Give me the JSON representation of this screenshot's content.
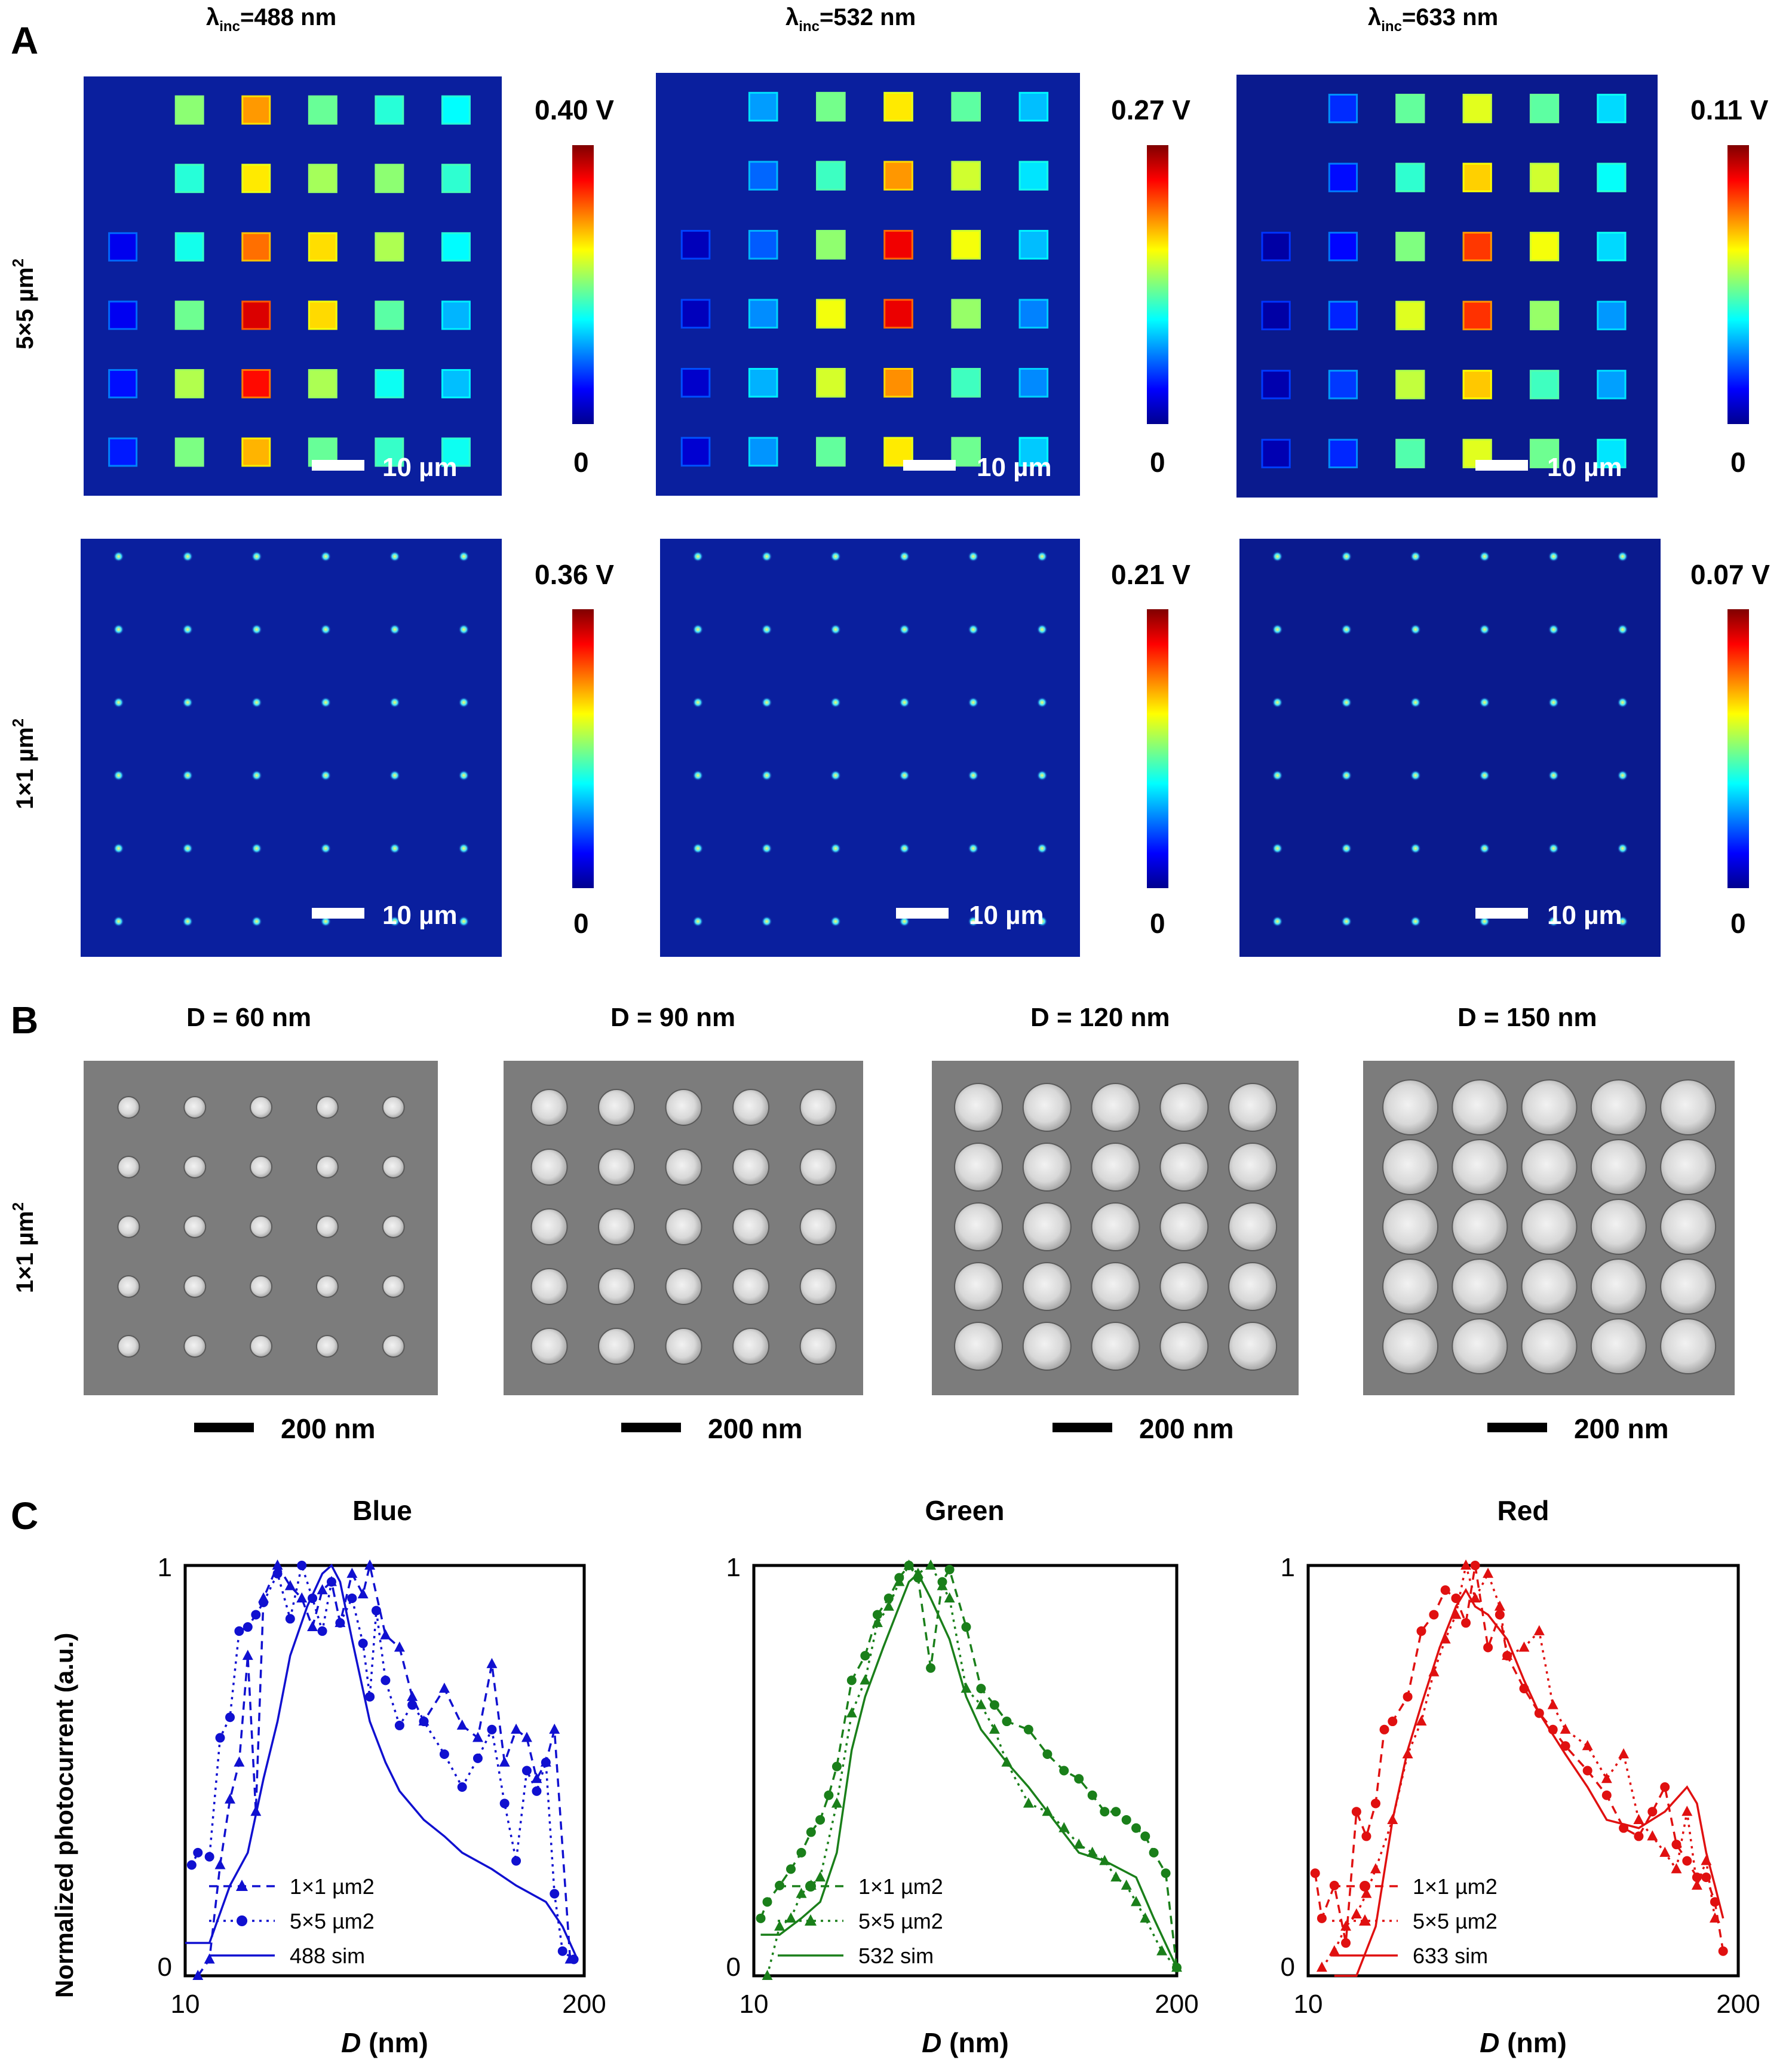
{
  "panels": {
    "A": {
      "label": "A",
      "columns": [
        {
          "prefix": "λ",
          "sub": "inc",
          "suffix": "=488 nm"
        },
        {
          "prefix": "λ",
          "sub": "inc",
          "suffix": "=532 nm"
        },
        {
          "prefix": "λ",
          "sub": "inc",
          "suffix": "=633 nm"
        }
      ],
      "rows": [
        {
          "label": "5×5 µm",
          "sup": "2"
        },
        {
          "label": "1×1 µm",
          "sup": "2"
        }
      ],
      "colorbar_max": [
        "0.40 V",
        "0.27 V",
        "0.11 V",
        "0.36 V",
        "0.21 V",
        "0.07 V"
      ],
      "colorbar_min": "0",
      "scale_bar": "10 µm"
    },
    "B": {
      "label": "B",
      "row_label": {
        "label": "1×1 µm",
        "sup": "2"
      },
      "titles": [
        "D = 60 nm",
        "D = 90 nm",
        "D = 120 nm",
        "D = 150 nm"
      ],
      "scale_bar": "200 nm"
    },
    "C": {
      "label": "C",
      "ylabel": "Normalized photocurrent (a.u.)",
      "xlabel_italic": "D",
      "xlabel_unit": " (nm)"
    }
  },
  "chart_data": [
    {
      "type": "line",
      "title": "Blue",
      "color": "#1010d0",
      "xscale": "log",
      "xlim": [
        10,
        200
      ],
      "ylim": [
        0,
        1
      ],
      "xticks": [
        "10",
        "200"
      ],
      "yticks": [
        "0",
        "1"
      ],
      "legend_position": "bottom-left",
      "series": [
        {
          "name": "1×1 µm2",
          "marker": "triangle",
          "line": "dashed",
          "x": [
            11,
            12,
            13,
            14,
            15,
            16,
            17,
            18,
            20,
            22,
            24,
            26,
            28,
            30,
            32,
            35,
            38,
            40,
            45,
            50,
            55,
            60,
            70,
            80,
            90,
            100,
            110,
            120,
            130,
            140,
            150,
            160,
            180
          ],
          "y": [
            0.0,
            0.04,
            0.27,
            0.43,
            0.52,
            0.78,
            0.4,
            0.92,
            1.0,
            0.95,
            0.92,
            0.85,
            0.94,
            0.96,
            0.86,
            0.98,
            0.93,
            1.0,
            0.83,
            0.8,
            0.68,
            0.62,
            0.7,
            0.61,
            0.58,
            0.76,
            0.52,
            0.6,
            0.58,
            0.48,
            0.52,
            0.6,
            0.04
          ]
        },
        {
          "name": "5×5 µm2",
          "marker": "circle",
          "line": "dash-dot",
          "x": [
            10.5,
            11,
            12,
            13,
            14,
            15,
            16,
            17,
            18,
            20,
            22,
            24,
            26,
            28,
            30,
            32,
            35,
            38,
            40,
            42,
            45,
            50,
            55,
            60,
            70,
            80,
            90,
            100,
            110,
            120,
            130,
            140,
            150,
            160,
            170,
            185
          ],
          "y": [
            0.27,
            0.3,
            0.29,
            0.58,
            0.63,
            0.84,
            0.85,
            0.88,
            0.91,
            0.98,
            0.87,
            1.0,
            0.92,
            0.84,
            0.96,
            0.86,
            0.92,
            0.81,
            0.68,
            0.89,
            0.72,
            0.61,
            0.66,
            0.62,
            0.54,
            0.46,
            0.53,
            0.6,
            0.42,
            0.28,
            0.5,
            0.45,
            0.52,
            0.2,
            0.06,
            0.04
          ]
        },
        {
          "name": "488 sim",
          "marker": "none",
          "line": "solid",
          "x": [
            10,
            12,
            14,
            16,
            18,
            20,
            22,
            25,
            28,
            30,
            32,
            35,
            40,
            45,
            50,
            60,
            70,
            80,
            100,
            120,
            150,
            170,
            190
          ],
          "y": [
            0.08,
            0.08,
            0.22,
            0.3,
            0.48,
            0.62,
            0.78,
            0.9,
            0.98,
            1.0,
            0.96,
            0.82,
            0.62,
            0.52,
            0.45,
            0.38,
            0.34,
            0.3,
            0.26,
            0.22,
            0.18,
            0.12,
            0.04
          ]
        }
      ]
    },
    {
      "type": "line",
      "title": "Green",
      "color": "#1a7f1a",
      "xscale": "log",
      "xlim": [
        10,
        200
      ],
      "ylim": [
        0,
        1
      ],
      "xticks": [
        "10",
        "200"
      ],
      "yticks": [
        "0",
        "1"
      ],
      "legend_position": "bottom-left",
      "series": [
        {
          "name": "1×1 µm2",
          "marker": "circle",
          "line": "dashed",
          "x": [
            10.5,
            11,
            12,
            13,
            14,
            15,
            16,
            17,
            18,
            20,
            22,
            24,
            26,
            28,
            30,
            32,
            35,
            38,
            40,
            45,
            50,
            55,
            60,
            70,
            80,
            90,
            100,
            110,
            120,
            130,
            140,
            150,
            160,
            170,
            185,
            200
          ],
          "y": [
            0.14,
            0.18,
            0.22,
            0.26,
            0.3,
            0.35,
            0.38,
            0.44,
            0.51,
            0.72,
            0.78,
            0.88,
            0.92,
            0.97,
            1.0,
            0.97,
            0.75,
            0.96,
            0.99,
            0.85,
            0.7,
            0.66,
            0.62,
            0.6,
            0.54,
            0.5,
            0.48,
            0.44,
            0.4,
            0.4,
            0.38,
            0.36,
            0.34,
            0.3,
            0.25,
            0.02
          ]
        },
        {
          "name": "5×5 µm2",
          "marker": "triangle",
          "line": "dash-dot",
          "x": [
            11,
            12,
            13,
            14,
            15,
            16,
            18,
            20,
            22,
            24,
            26,
            28,
            30,
            32,
            35,
            38,
            40,
            45,
            50,
            55,
            60,
            70,
            80,
            90,
            100,
            110,
            120,
            130,
            140,
            150,
            160,
            180,
            200
          ],
          "y": [
            0.0,
            0.12,
            0.14,
            0.2,
            0.22,
            0.24,
            0.42,
            0.64,
            0.72,
            0.86,
            0.9,
            0.96,
            1.0,
            0.98,
            1.0,
            0.95,
            0.92,
            0.7,
            0.66,
            0.6,
            0.52,
            0.42,
            0.4,
            0.36,
            0.32,
            0.3,
            0.28,
            0.24,
            0.22,
            0.18,
            0.14,
            0.06,
            0.02
          ]
        },
        {
          "name": "532 sim",
          "marker": "none",
          "line": "solid",
          "x": [
            10.5,
            12,
            14,
            16,
            18,
            20,
            22,
            25,
            28,
            30,
            32,
            35,
            40,
            45,
            50,
            60,
            70,
            80,
            100,
            120,
            150,
            170,
            200
          ],
          "y": [
            0.1,
            0.1,
            0.14,
            0.18,
            0.3,
            0.55,
            0.68,
            0.8,
            0.9,
            0.96,
            0.98,
            0.92,
            0.82,
            0.68,
            0.6,
            0.52,
            0.46,
            0.4,
            0.3,
            0.28,
            0.24,
            0.14,
            0.02
          ]
        }
      ]
    },
    {
      "type": "line",
      "title": "Red",
      "color": "#e01010",
      "xscale": "log",
      "xlim": [
        10,
        200
      ],
      "ylim": [
        0,
        1
      ],
      "xticks": [
        "10",
        "200"
      ],
      "yticks": [
        "0",
        "1"
      ],
      "legend_position": "bottom-left",
      "series": [
        {
          "name": "1×1 µm2",
          "marker": "circle",
          "line": "dashed",
          "x": [
            10.5,
            11,
            12,
            13,
            14,
            15,
            16,
            17,
            18,
            20,
            22,
            24,
            26,
            28,
            30,
            32,
            35,
            38,
            40,
            45,
            50,
            55,
            60,
            70,
            80,
            90,
            100,
            110,
            120,
            130,
            140,
            150,
            160,
            170,
            180
          ],
          "y": [
            0.25,
            0.14,
            0.22,
            0.08,
            0.4,
            0.34,
            0.42,
            0.6,
            0.62,
            0.68,
            0.84,
            0.88,
            0.94,
            0.92,
            0.86,
            1.0,
            0.8,
            0.88,
            0.78,
            0.7,
            0.64,
            0.6,
            0.56,
            0.5,
            0.44,
            0.36,
            0.34,
            0.4,
            0.46,
            0.32,
            0.28,
            0.24,
            0.24,
            0.18,
            0.06
          ]
        },
        {
          "name": "5×5 µm2",
          "marker": "triangle",
          "line": "dash-dot",
          "x": [
            11,
            12,
            13,
            14,
            15,
            16,
            18,
            20,
            22,
            24,
            26,
            28,
            30,
            32,
            35,
            38,
            40,
            45,
            50,
            55,
            60,
            70,
            80,
            90,
            100,
            110,
            120,
            130,
            140,
            150,
            160,
            170
          ],
          "y": [
            0.02,
            0.06,
            0.12,
            0.15,
            0.2,
            0.26,
            0.38,
            0.54,
            0.62,
            0.74,
            0.82,
            0.88,
            1.0,
            0.92,
            0.98,
            0.9,
            0.78,
            0.8,
            0.84,
            0.66,
            0.6,
            0.56,
            0.48,
            0.54,
            0.38,
            0.34,
            0.3,
            0.26,
            0.4,
            0.22,
            0.28,
            0.14
          ]
        },
        {
          "name": "633 sim",
          "marker": "none",
          "line": "solid",
          "x": [
            12,
            14,
            16,
            18,
            20,
            22,
            25,
            28,
            30,
            32,
            35,
            40,
            45,
            50,
            60,
            70,
            80,
            100,
            120,
            140,
            150,
            160,
            170,
            180
          ],
          "y": [
            0.0,
            0.0,
            0.12,
            0.38,
            0.55,
            0.66,
            0.8,
            0.9,
            0.94,
            0.9,
            0.88,
            0.82,
            0.72,
            0.64,
            0.54,
            0.46,
            0.38,
            0.36,
            0.4,
            0.46,
            0.42,
            0.3,
            0.22,
            0.14
          ]
        }
      ]
    }
  ]
}
